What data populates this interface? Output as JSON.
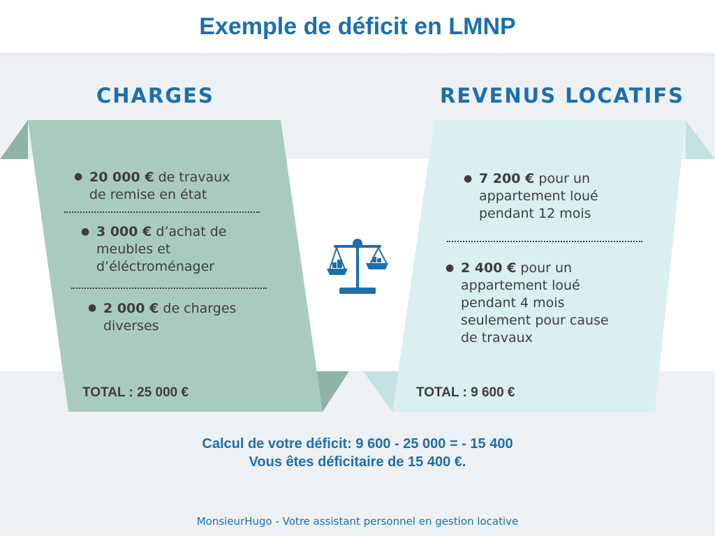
{
  "title": "Exemple de déficit en LMNP",
  "charges": {
    "heading": "CHARGES",
    "items": [
      {
        "amount": "20 000 €",
        "line1": " de travaux",
        "line2": "de remise en état"
      },
      {
        "amount": "3 000 €",
        "line1": "  d’achat de",
        "line2": "meubles et",
        "line3": "d’éléctroménager"
      },
      {
        "amount": "2 000 €",
        "line1": " de charges",
        "line2": "diverses"
      }
    ],
    "total": "TOTAL : 25 000 €"
  },
  "revenus": {
    "heading": "REVENUS LOCATIFS",
    "items": [
      {
        "amount": "7 200 €",
        "line1": " pour un",
        "line2": "appartement loué",
        "line3": "pendant 12 mois"
      },
      {
        "amount": "2 400 €",
        "line1": " pour un",
        "line2": "appartement loué",
        "line3": "pendant 4 mois",
        "line4": "seulement pour cause",
        "line5": "de travaux"
      }
    ],
    "total": "TOTAL : 9 600 €"
  },
  "calcul": {
    "line1": "Calcul de votre déficit: 9 600 - 25 000 = - 15 400",
    "line2": "Vous êtes déficitaire de 15 400 €."
  },
  "footer": "MonsieurHugo  - Votre assistant personnel en gestion locative",
  "icons": {
    "balance": "scale-balance-icon"
  },
  "colors": {
    "accent": "#1b6fb0",
    "charges_panel": "#a9cbbd",
    "charges_shadow": "#8fb3a6",
    "revenus_panel": "#dceff0",
    "revenus_shadow": "#c3e2e1",
    "text": "#3d3d3d",
    "background": "#eef1f4"
  }
}
